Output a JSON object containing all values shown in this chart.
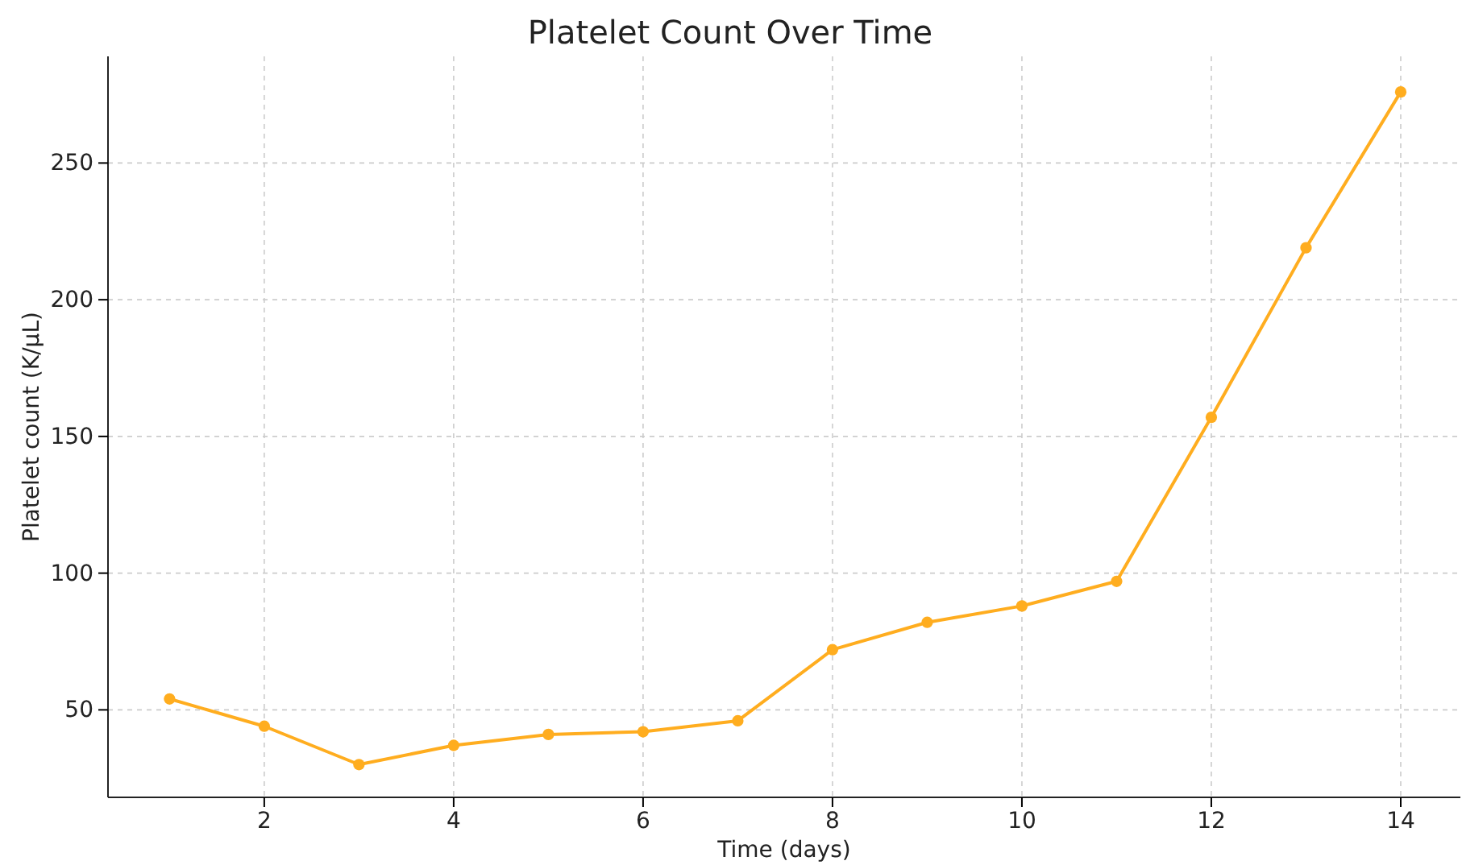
{
  "chart_data": {
    "type": "line",
    "title": "Platelet Count Over Time",
    "xlabel": "Time (days)",
    "ylabel": "Platelet count (K/µL)",
    "x": [
      1,
      2,
      3,
      4,
      5,
      6,
      7,
      8,
      9,
      10,
      11,
      12,
      13,
      14
    ],
    "series": [
      {
        "color": "#ffad1f",
        "values": [
          54,
          44,
          30,
          37,
          41,
          42,
          46,
          72,
          82,
          88,
          97,
          157,
          219,
          276
        ]
      }
    ],
    "xlim": [
      0.35,
      14.63
    ],
    "ylim": [
      18,
      289
    ],
    "xticks": [
      2,
      4,
      6,
      8,
      10,
      12,
      14
    ],
    "yticks": [
      50,
      100,
      150,
      200,
      250
    ],
    "grid": true,
    "marker": "circle",
    "line_style": "solid"
  }
}
